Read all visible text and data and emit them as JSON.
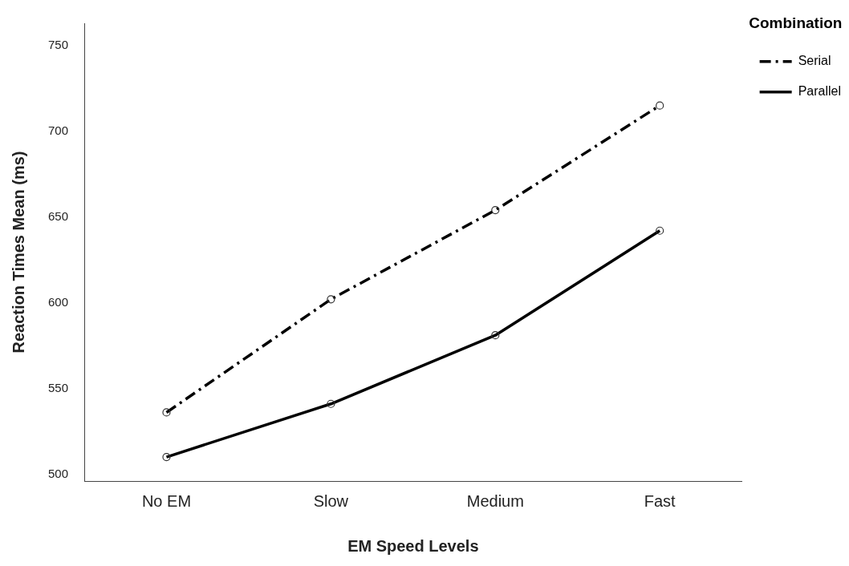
{
  "chart_data": {
    "type": "line",
    "xlabel": "EM Speed Levels",
    "ylabel": "Reaction Times Mean (ms)",
    "legend_title": "Combination",
    "categories": [
      "No EM",
      "Slow",
      "Medium",
      "Fast"
    ],
    "series": [
      {
        "name": "Serial",
        "color": "#000000",
        "line_style": "dashed",
        "values": [
          536,
          602,
          654,
          715
        ]
      },
      {
        "name": "Parallel",
        "color": "#000000",
        "line_style": "solid",
        "values": [
          510,
          541,
          581,
          642
        ]
      }
    ],
    "ylim": [
      496,
      763
    ],
    "yticks": [
      500,
      550,
      600,
      650,
      700,
      750
    ],
    "grid": false,
    "legend": "top right",
    "marker": "circle"
  }
}
